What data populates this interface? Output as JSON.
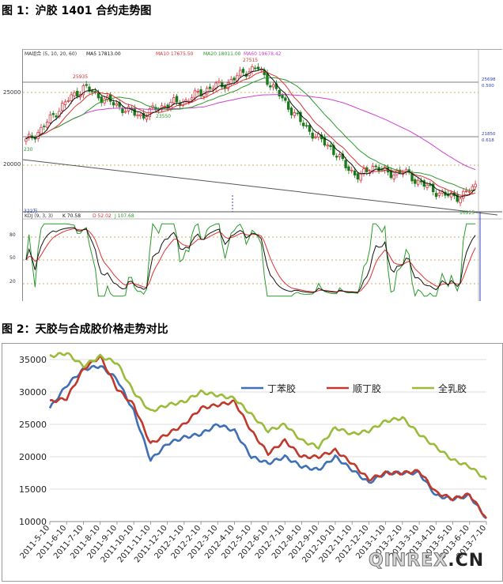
{
  "captions": {
    "fig1": "图 1：沪胶 1401 合约走势图",
    "fig2": "图 2：天胶与合成胶价格走势对比"
  },
  "watermark": {
    "part1": "QINREX",
    "part2": ".CN"
  },
  "fig1": {
    "ma_legend": {
      "title": "MA组合 (5, 10, 20, 60)",
      "ma5": "MA5 17813.00",
      "ma10": "MA10 17675.50",
      "ma20": "MA20 18011.00",
      "ma60": "MA60 19678.42"
    },
    "price_labels": {
      "high1": "25935",
      "peak": "27515",
      "low_mid": "23550",
      "low_end": "16925",
      "start": "230",
      "low_left": "322万"
    },
    "axis_ticks": [
      "25000",
      "20000"
    ],
    "right_labels": {
      "r1": "25698",
      "r1b": "0.500",
      "r2": "21850",
      "r2b": "0.618"
    },
    "kdj_legend": {
      "title": "KDJ (9, 3, 3)",
      "k": "K 70.58",
      "d": "D 52.02",
      "j": "J 107.68"
    },
    "kdj_ticks": [
      "80",
      "50",
      "20"
    ],
    "colors": {
      "up": "#e0202a",
      "down": "#1a7a1a",
      "ma5": "#111111",
      "ma10": "#e03030",
      "ma20": "#2a9a2a",
      "ma60": "#d040d0",
      "k": "#111111",
      "d": "#e03030",
      "j": "#2a9a2a"
    }
  },
  "chart_data": [
    {
      "type": "line",
      "title": "",
      "series": [
        {
          "name": "",
          "values": [
            21500,
            22400,
            23800,
            25000,
            25935,
            25200,
            24600,
            24000,
            23550,
            24200,
            24600,
            24800,
            25500,
            26000,
            26300,
            27200,
            27515,
            26000,
            24500,
            23000,
            21850,
            21000,
            19500,
            18500,
            19500,
            18800,
            19000,
            18200,
            17500,
            17000,
            16925,
            17813
          ]
        }
      ],
      "ylim": [
        16000,
        28500
      ],
      "y_ticks": [
        25000,
        20000
      ]
    },
    {
      "type": "line",
      "title": "",
      "x": [
        "2011-5-10",
        "2011-6-10",
        "2011-7-10",
        "2011-8-10",
        "2011-9-10",
        "2011-10-10",
        "2011-11-10",
        "2011-12-10",
        "2012-1-10",
        "2012-2-10",
        "2012-3-10",
        "2012-4-10",
        "2012-5-10",
        "2012-6-10",
        "2012-7-10",
        "2012-8-10",
        "2012-9-10",
        "2012-10-10",
        "2012-11-10",
        "2012-12-10",
        "2013-1-10",
        "2013-2-10",
        "2013-3-10",
        "2013-4-10",
        "2013-5-10",
        "2013-6-10",
        "2013-7-10"
      ],
      "ylim": [
        10000,
        35000
      ],
      "y_ticks": [
        10000,
        15000,
        20000,
        25000,
        30000,
        35000
      ],
      "series": [
        {
          "name": "丁苯胶",
          "color": "#3f6fb5",
          "values": [
            27500,
            31000,
            33500,
            34000,
            32000,
            27000,
            19500,
            22000,
            23000,
            23500,
            25000,
            24000,
            20000,
            19000,
            20000,
            18500,
            18000,
            20000,
            18000,
            16000,
            17500,
            17500,
            17500,
            14000,
            13500,
            14000,
            10500
          ]
        },
        {
          "name": "顺丁胶",
          "color": "#c0392b",
          "values": [
            28500,
            29000,
            33500,
            35500,
            30500,
            28000,
            22000,
            23500,
            25000,
            27500,
            28000,
            28500,
            24000,
            20500,
            22500,
            20000,
            20000,
            21000,
            19000,
            16500,
            17500,
            17500,
            17800,
            14500,
            13500,
            14200,
            10500
          ]
        },
        {
          "name": "全乳胶",
          "color": "#9bbb3b",
          "values": [
            35500,
            36000,
            34000,
            35500,
            34500,
            30000,
            27000,
            28000,
            28500,
            30000,
            29500,
            29000,
            26500,
            24000,
            25000,
            22500,
            21500,
            24500,
            23500,
            24000,
            25500,
            26000,
            23500,
            21500,
            19500,
            18500,
            16500
          ]
        }
      ]
    }
  ]
}
